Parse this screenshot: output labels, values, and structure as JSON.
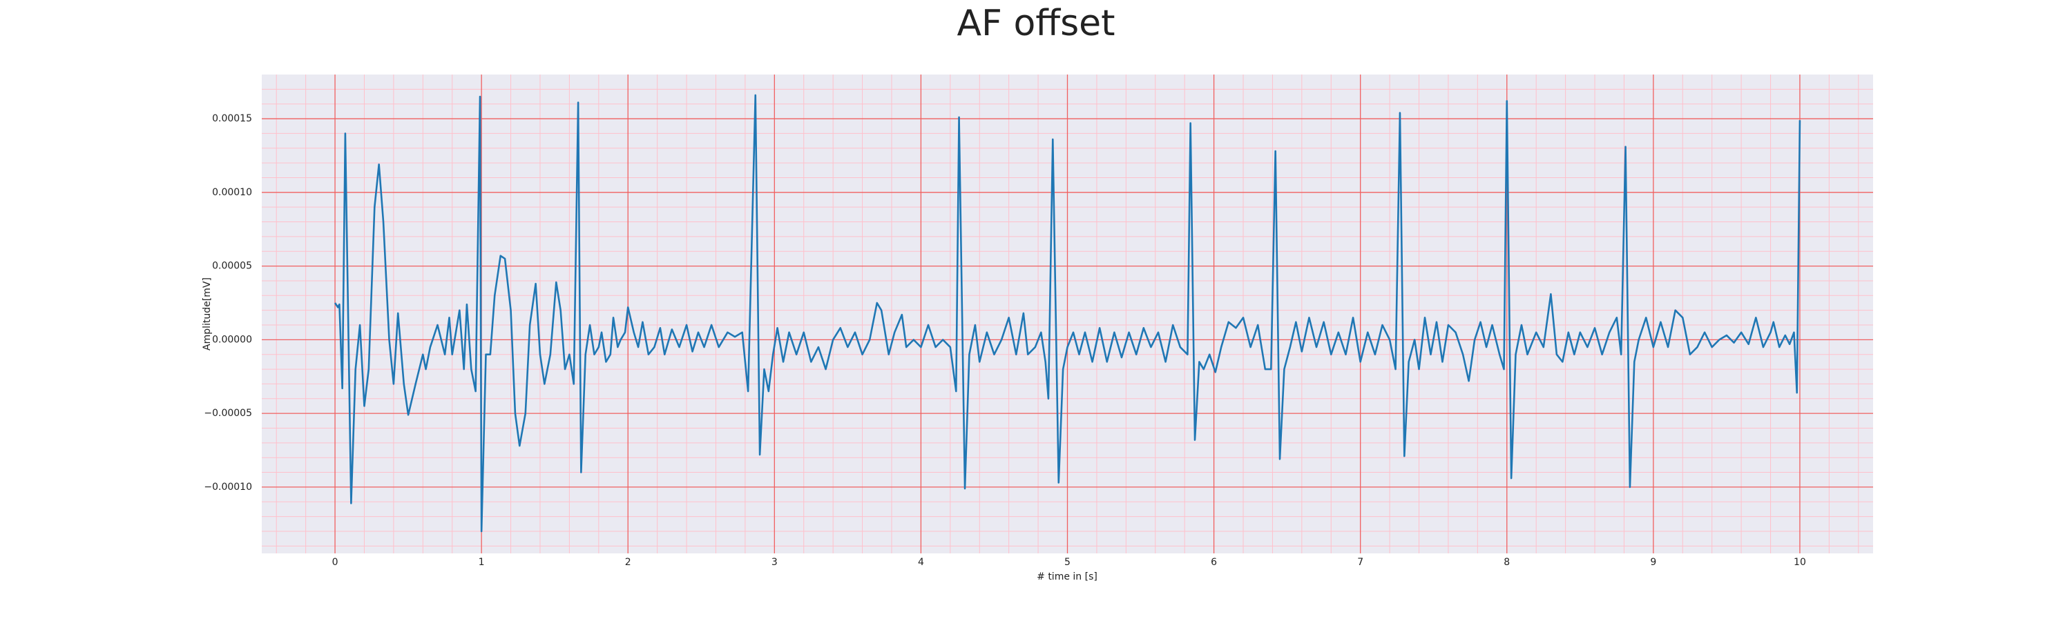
{
  "chart_data": {
    "type": "line",
    "title": "AF offset",
    "xlabel": "# time in [s]",
    "ylabel": "Amplitude[mV]",
    "color": "#1f77b4",
    "background": "#eaeaf2",
    "grid": true,
    "grid_color": "#f06060",
    "minor_grid_color": "#ffc0cb",
    "minor_grid_divisions": {
      "x": 5,
      "y": 5
    },
    "xlim": [
      -0.5,
      10.5
    ],
    "ylim": [
      -0.000145,
      0.00018
    ],
    "xticks": [
      0,
      1,
      2,
      3,
      4,
      5,
      6,
      7,
      8,
      9,
      10
    ],
    "yticks": [
      {
        "value": -0.0001,
        "label": "−0.00010"
      },
      {
        "value": -5e-05,
        "label": "−0.00005"
      },
      {
        "value": 0,
        "label": "0.00000"
      },
      {
        "value": 5e-05,
        "label": "0.00005"
      },
      {
        "value": 0.0001,
        "label": "0.00010"
      },
      {
        "value": 0.00015,
        "label": "0.00015"
      }
    ],
    "x": [
      0,
      0.02,
      0.03,
      0.05,
      0.07,
      0.11,
      0.14,
      0.17,
      0.2,
      0.23,
      0.27,
      0.3,
      0.33,
      0.37,
      0.4,
      0.43,
      0.47,
      0.5,
      0.55,
      0.6,
      0.62,
      0.65,
      0.7,
      0.75,
      0.78,
      0.8,
      0.85,
      0.88,
      0.9,
      0.93,
      0.96,
      0.99,
      1.0,
      1.03,
      1.06,
      1.09,
      1.13,
      1.16,
      1.2,
      1.23,
      1.26,
      1.3,
      1.33,
      1.37,
      1.4,
      1.43,
      1.47,
      1.51,
      1.54,
      1.57,
      1.6,
      1.63,
      1.66,
      1.68,
      1.71,
      1.74,
      1.77,
      1.8,
      1.82,
      1.85,
      1.88,
      1.9,
      1.93,
      1.95,
      1.98,
      2.0,
      2.04,
      2.07,
      2.1,
      2.14,
      2.18,
      2.22,
      2.25,
      2.3,
      2.35,
      2.4,
      2.44,
      2.48,
      2.52,
      2.57,
      2.62,
      2.68,
      2.73,
      2.78,
      2.82,
      2.87,
      2.9,
      2.93,
      2.96,
      2.99,
      3.02,
      3.06,
      3.1,
      3.15,
      3.2,
      3.25,
      3.3,
      3.35,
      3.4,
      3.45,
      3.5,
      3.55,
      3.6,
      3.65,
      3.7,
      3.73,
      3.78,
      3.82,
      3.87,
      3.9,
      3.95,
      4.0,
      4.05,
      4.1,
      4.15,
      4.2,
      4.24,
      4.26,
      4.3,
      4.33,
      4.37,
      4.4,
      4.45,
      4.5,
      4.55,
      4.6,
      4.65,
      4.7,
      4.73,
      4.78,
      4.82,
      4.85,
      4.87,
      4.9,
      4.94,
      4.97,
      5.0,
      5.04,
      5.08,
      5.12,
      5.17,
      5.22,
      5.27,
      5.32,
      5.37,
      5.42,
      5.47,
      5.52,
      5.57,
      5.62,
      5.67,
      5.72,
      5.77,
      5.82,
      5.84,
      5.87,
      5.9,
      5.93,
      5.97,
      6.01,
      6.05,
      6.1,
      6.15,
      6.2,
      6.25,
      6.3,
      6.35,
      6.39,
      6.42,
      6.45,
      6.48,
      6.52,
      6.56,
      6.6,
      6.65,
      6.7,
      6.75,
      6.8,
      6.85,
      6.9,
      6.95,
      7.0,
      7.05,
      7.1,
      7.15,
      7.2,
      7.24,
      7.27,
      7.3,
      7.33,
      7.37,
      7.4,
      7.44,
      7.48,
      7.52,
      7.56,
      7.6,
      7.65,
      7.7,
      7.74,
      7.78,
      7.82,
      7.86,
      7.9,
      7.95,
      7.98,
      8.0,
      8.03,
      8.06,
      8.1,
      8.14,
      8.2,
      8.25,
      8.3,
      8.34,
      8.38,
      8.42,
      8.46,
      8.5,
      8.55,
      8.6,
      8.65,
      8.7,
      8.75,
      8.78,
      8.81,
      8.84,
      8.87,
      8.9,
      8.95,
      9.0,
      9.05,
      9.1,
      9.15,
      9.2,
      9.25,
      9.3,
      9.35,
      9.4,
      9.45,
      9.5,
      9.55,
      9.6,
      9.65,
      9.7,
      9.75,
      9.8,
      9.82,
      9.86,
      9.9,
      9.93,
      9.96,
      9.98,
      10.0
    ],
    "values": [
      2.5e-05,
      2.2e-05,
      2.4e-05,
      -3.3e-05,
      0.00014,
      -0.000111,
      -2e-05,
      1e-05,
      -4.5e-05,
      -2e-05,
      9e-05,
      0.000119,
      8e-05,
      0,
      -3e-05,
      1.8e-05,
      -3e-05,
      -5.1e-05,
      -3e-05,
      -1e-05,
      -2e-05,
      -5e-06,
      1e-05,
      -1e-05,
      1.5e-05,
      -1e-05,
      2e-05,
      -2e-05,
      2.4e-05,
      -2e-05,
      -3.5e-05,
      0.000165,
      -0.00013,
      -1e-05,
      -1e-05,
      3e-05,
      5.7e-05,
      5.5e-05,
      2e-05,
      -5e-05,
      -7.2e-05,
      -5e-05,
      1e-05,
      3.8e-05,
      -1e-05,
      -3e-05,
      -1e-05,
      3.9e-05,
      2e-05,
      -2e-05,
      -1e-05,
      -3e-05,
      0.000161,
      -9e-05,
      -1e-05,
      1e-05,
      -1e-05,
      -5e-06,
      5e-06,
      -1.5e-05,
      -1e-05,
      1.5e-05,
      -5e-06,
      0,
      5e-06,
      2.2e-05,
      5e-06,
      -5e-06,
      1.2e-05,
      -1e-05,
      -5e-06,
      8e-06,
      -1e-05,
      7e-06,
      -5e-06,
      1e-05,
      -8e-06,
      5e-06,
      -5e-06,
      1e-05,
      -5e-06,
      5e-06,
      2e-06,
      5e-06,
      -3.5e-05,
      0.000166,
      -7.8e-05,
      -2e-05,
      -3.5e-05,
      -1e-05,
      8e-06,
      -1.5e-05,
      5e-06,
      -1e-05,
      5e-06,
      -1.5e-05,
      -5e-06,
      -2e-05,
      0,
      8e-06,
      -5e-06,
      5e-06,
      -1e-05,
      0,
      2.5e-05,
      2e-05,
      -1e-05,
      5e-06,
      1.7e-05,
      -5e-06,
      0,
      -5e-06,
      1e-05,
      -5e-06,
      0,
      -5e-06,
      -3.5e-05,
      0.000151,
      -0.000101,
      -1e-05,
      1e-05,
      -1.5e-05,
      5e-06,
      -1e-05,
      0,
      1.5e-05,
      -1e-05,
      1.8e-05,
      -1e-05,
      -5e-06,
      5e-06,
      -1.5e-05,
      -4e-05,
      0.000136,
      -9.7e-05,
      -2e-05,
      -5e-06,
      5e-06,
      -1e-05,
      5e-06,
      -1.5e-05,
      8e-06,
      -1.5e-05,
      5e-06,
      -1.2e-05,
      5e-06,
      -1e-05,
      8e-06,
      -5e-06,
      5e-06,
      -1.5e-05,
      1e-05,
      -5e-06,
      -1e-05,
      0.000147,
      -6.8e-05,
      -1.5e-05,
      -2e-05,
      -1e-05,
      -2.2e-05,
      -5e-06,
      1.2e-05,
      8e-06,
      1.5e-05,
      -5e-06,
      1e-05,
      -2e-05,
      -2e-05,
      0.000128,
      -8.1e-05,
      -2e-05,
      -5e-06,
      1.2e-05,
      -8e-06,
      1.5e-05,
      -5e-06,
      1.2e-05,
      -1e-05,
      5e-06,
      -1e-05,
      1.5e-05,
      -1.5e-05,
      5e-06,
      -1e-05,
      1e-05,
      0,
      -2e-05,
      0.000154,
      -7.9e-05,
      -1.5e-05,
      0,
      -2e-05,
      1.5e-05,
      -1e-05,
      1.2e-05,
      -1.5e-05,
      1e-05,
      5e-06,
      -1e-05,
      -2.8e-05,
      0,
      1.2e-05,
      -5e-06,
      1e-05,
      -1e-05,
      -2e-05,
      0.000162,
      -9.4e-05,
      -1e-05,
      1e-05,
      -1e-05,
      5e-06,
      -5e-06,
      3.1e-05,
      -1e-05,
      -1.5e-05,
      5e-06,
      -1e-05,
      5e-06,
      -5e-06,
      8e-06,
      -1e-05,
      5e-06,
      1.5e-05,
      -1e-05,
      0.000131,
      -0.0001,
      -1.5e-05,
      0,
      1.5e-05,
      -5e-06,
      1.2e-05,
      -5e-06,
      2e-05,
      1.5e-05,
      -1e-05,
      -5e-06,
      5e-06,
      -5e-06,
      0,
      3e-06,
      -2e-06,
      5e-06,
      -3e-06,
      1.5e-05,
      -5e-06,
      5e-06,
      1.2e-05,
      -5e-06,
      3e-06,
      -3e-06,
      5e-06,
      -3.6e-05,
      0.000149
    ]
  }
}
